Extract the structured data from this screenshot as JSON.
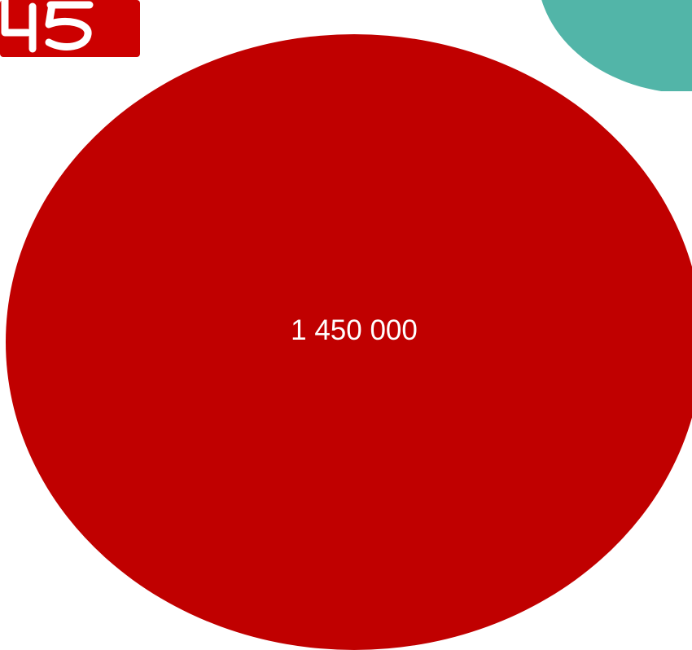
{
  "colors": {
    "main_circle": "#c00000",
    "teal_circle": "#52b5a8",
    "logo_background": "#cc0000",
    "logo_mark": "#ffffff",
    "value_text": "#ffffff"
  },
  "logo": {
    "icon": "number-badge-logo"
  },
  "main_circle": {
    "value": "1 450 000"
  }
}
